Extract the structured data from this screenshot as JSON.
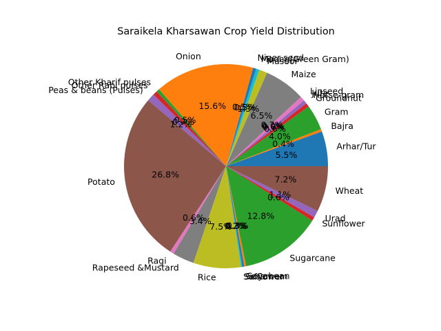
{
  "chart_data": {
    "type": "pie",
    "title": "Saraikela Kharsawan Crop Yield Distribution",
    "start_angle_deg": 0,
    "direction": "counterclockwise",
    "slices": [
      {
        "label": "Arhar/Tur",
        "value": 5.5,
        "pct_label": "5.5%",
        "color": "#1f77b4"
      },
      {
        "label": "Bajra",
        "value": 0.4,
        "pct_label": "0.4%",
        "color": "#ff7f0e"
      },
      {
        "label": "Gram",
        "value": 4.0,
        "pct_label": "4.0%",
        "color": "#2ca02c"
      },
      {
        "label": "Groundnut",
        "value": 0.6,
        "pct_label": "0.6%",
        "color": "#d62728"
      },
      {
        "label": "Horse-gram",
        "value": 0.6,
        "pct_label": "0.6%",
        "color": "#9467bd"
      },
      {
        "label": "Jute",
        "value": 0.0,
        "pct_label": "0.0%",
        "color": "#8c564b"
      },
      {
        "label": "Linseed",
        "value": 0.7,
        "pct_label": "0.7%",
        "color": "#e377c2"
      },
      {
        "label": "Maize",
        "value": 6.5,
        "pct_label": "6.5%",
        "color": "#7f7f7f"
      },
      {
        "label": "Masoor",
        "value": 1.3,
        "pct_label": "1.3%",
        "color": "#bcbd22"
      },
      {
        "label": "Moong(Green Gram)",
        "value": 0.5,
        "pct_label": "0.5%",
        "color": "#17becf"
      },
      {
        "label": "Niger seed",
        "value": 0.5,
        "pct_label": "0.5%",
        "color": "#1f77b4"
      },
      {
        "label": "Onion",
        "value": 15.6,
        "pct_label": "15.6%",
        "color": "#ff7f0e"
      },
      {
        "label": "Other Kharif pulses",
        "value": 0.5,
        "pct_label": "0.5%",
        "color": "#2ca02c"
      },
      {
        "label": "Other Rabi pulses",
        "value": 0.7,
        "pct_label": "0.7%",
        "color": "#d62728"
      },
      {
        "label": "Peas & beans (Pulses)",
        "value": 1.2,
        "pct_label": "1.2%",
        "color": "#9467bd"
      },
      {
        "label": "Potato",
        "value": 26.8,
        "pct_label": "26.8%",
        "color": "#8c564b"
      },
      {
        "label": "Ragi",
        "value": 0.6,
        "pct_label": "0.6%",
        "color": "#e377c2"
      },
      {
        "label": "Rapeseed &Mustard",
        "value": 3.4,
        "pct_label": "3.4%",
        "color": "#7f7f7f"
      },
      {
        "label": "Rice",
        "value": 7.5,
        "pct_label": "7.5%",
        "color": "#bcbd22"
      },
      {
        "label": "Safflower",
        "value": 0.2,
        "pct_label": "0.2%",
        "color": "#17becf"
      },
      {
        "label": "Sesamum",
        "value": 0.3,
        "pct_label": "0.3%",
        "color": "#1f77b4"
      },
      {
        "label": "Soyabean",
        "value": 0.3,
        "pct_label": "0.3%",
        "color": "#ff7f0e"
      },
      {
        "label": "Sugarcane",
        "value": 12.8,
        "pct_label": "12.8%",
        "color": "#2ca02c"
      },
      {
        "label": "Sunflower",
        "value": 0.6,
        "pct_label": "0.6%",
        "color": "#d62728"
      },
      {
        "label": "Urad",
        "value": 1.1,
        "pct_label": "1.1%",
        "color": "#9467bd"
      },
      {
        "label": "Wheat",
        "value": 7.2,
        "pct_label": "7.2%",
        "color": "#8c564b"
      }
    ]
  }
}
